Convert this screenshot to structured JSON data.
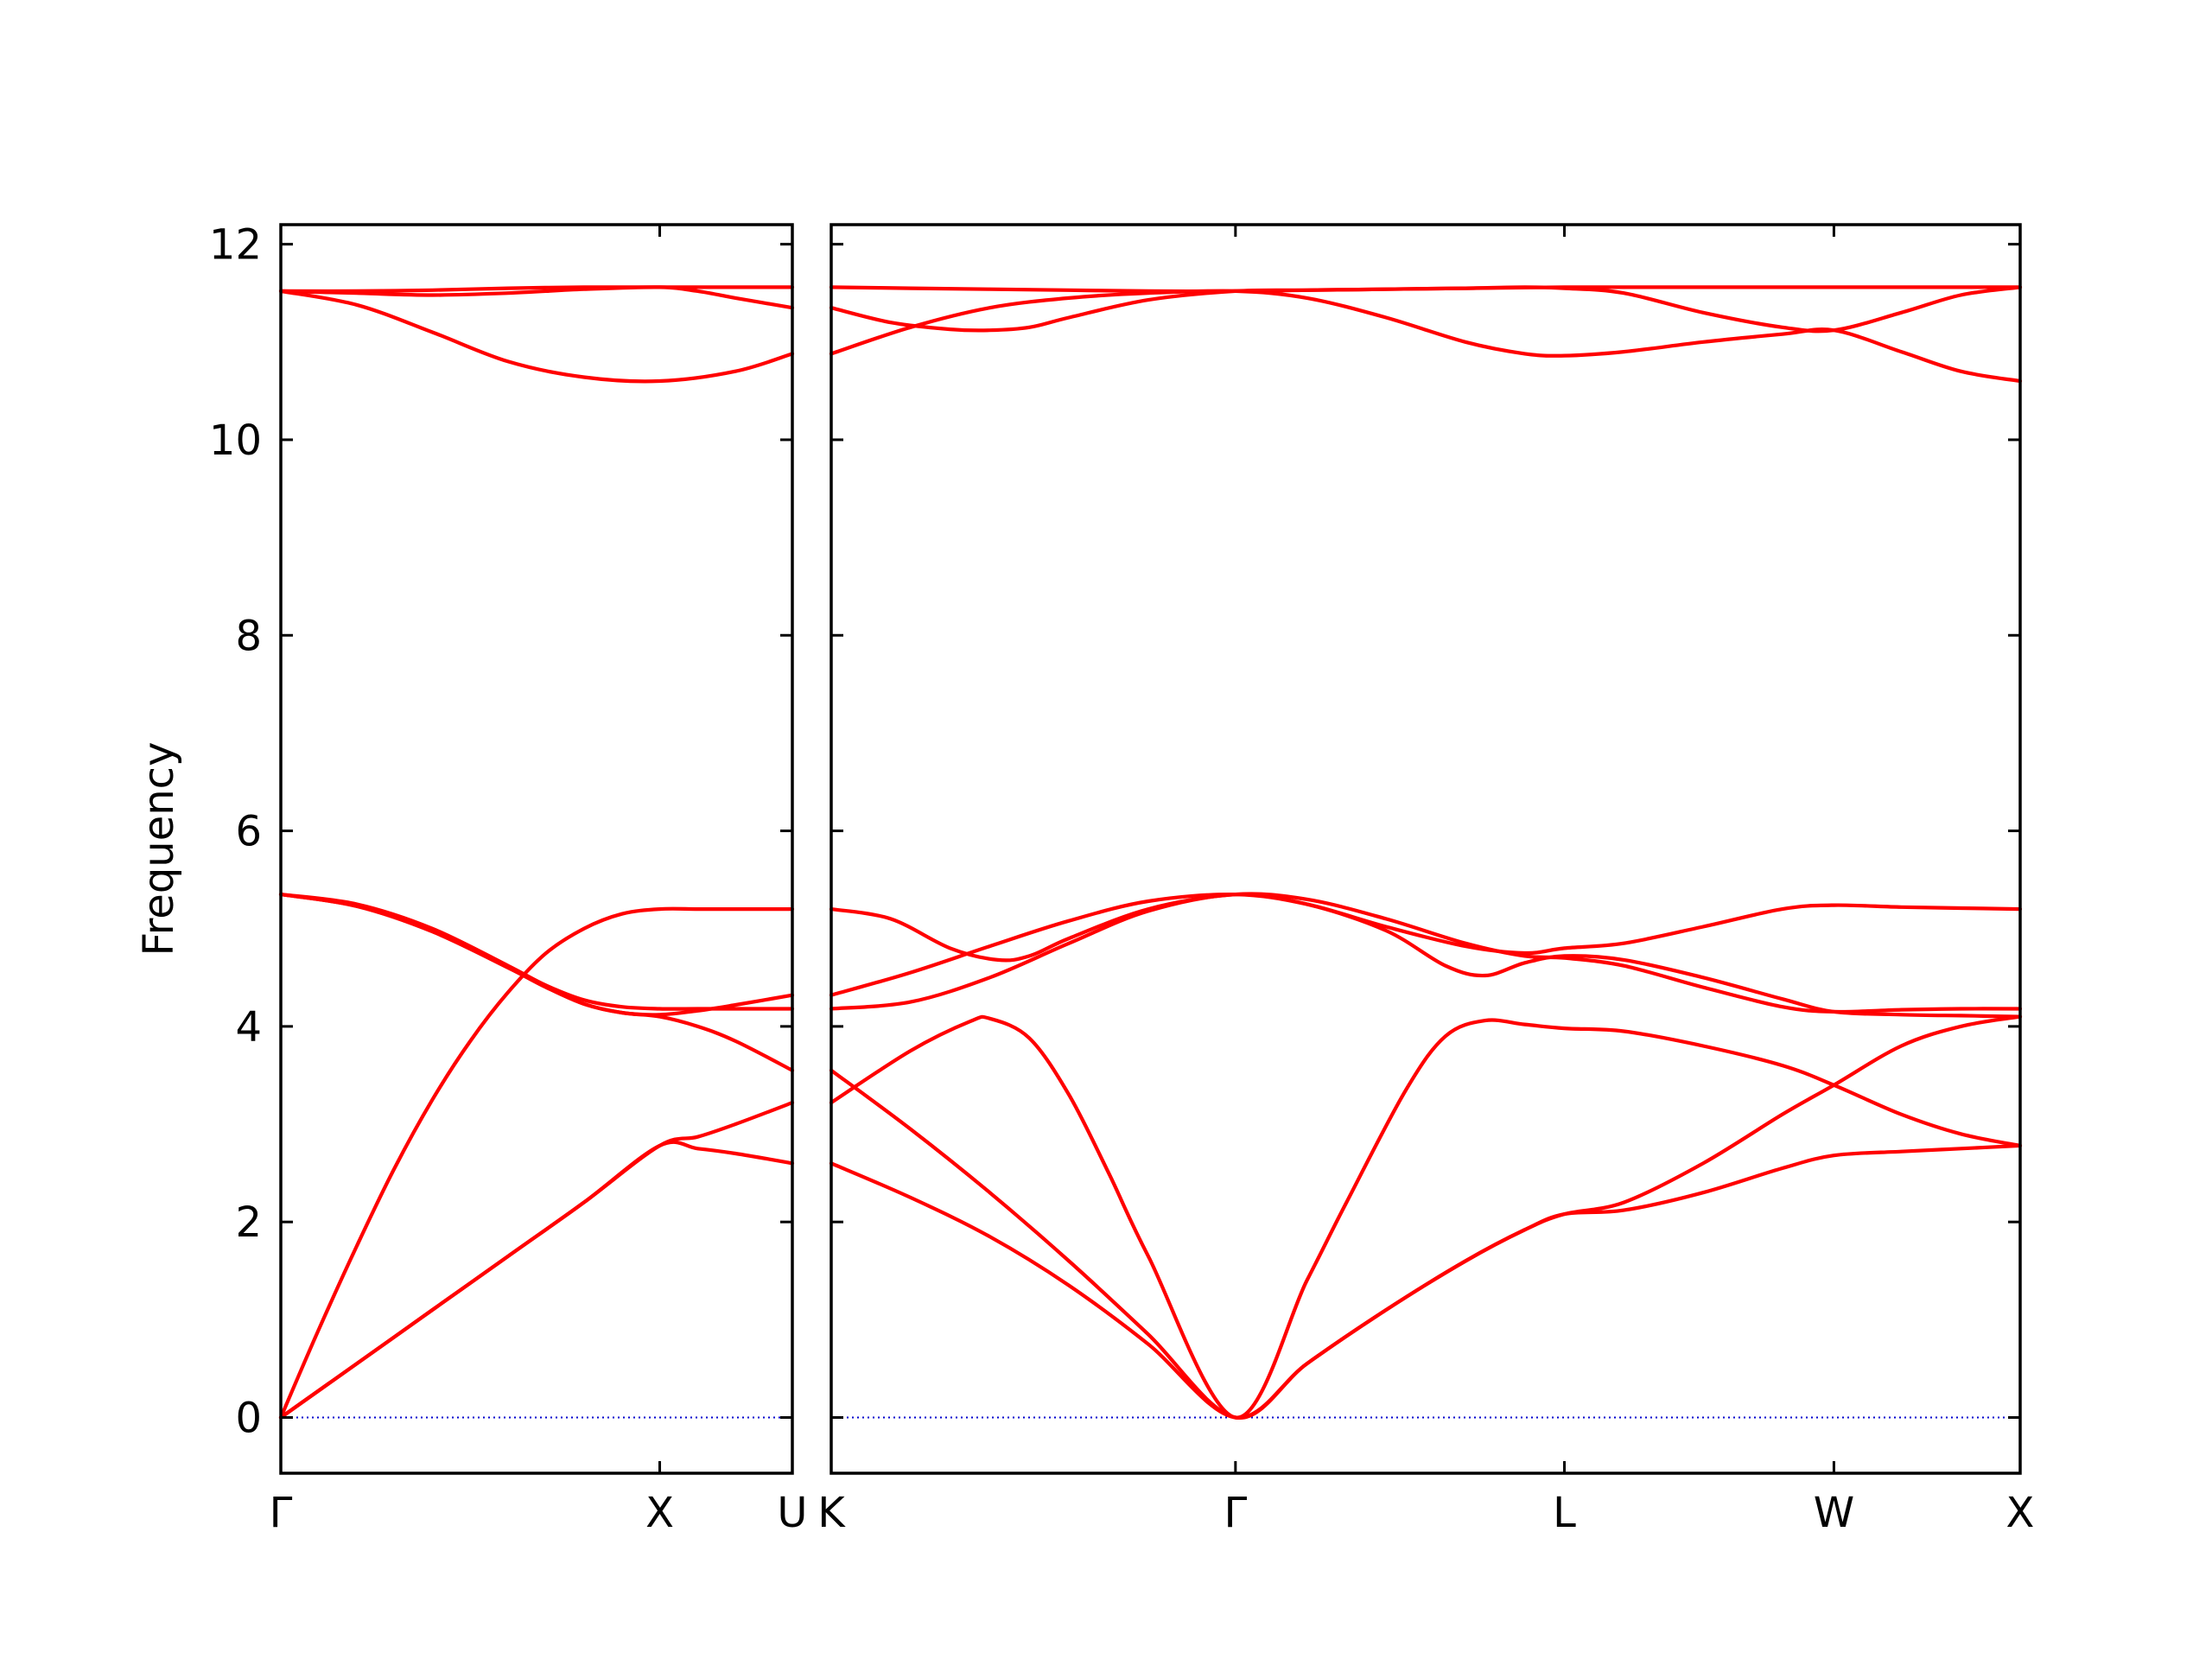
{
  "chart_data": {
    "type": "line",
    "ylabel": "Frequency",
    "ylim": [
      -0.57,
      12.2
    ],
    "yticks": [
      0,
      2,
      4,
      6,
      8,
      10,
      12
    ],
    "grid": false,
    "legend": "none",
    "colors": {
      "bands": "#ff0000",
      "zero_line": "#0000cc",
      "frame": "#000000"
    },
    "panels": [
      {
        "name": "panel-1",
        "xlim": [
          0,
          1.35
        ],
        "ticks": [
          {
            "x": 0.0,
            "label": "Γ"
          },
          {
            "x": 1.0,
            "label": "X"
          },
          {
            "x": 1.35,
            "label": "U"
          }
        ],
        "series": [
          {
            "x": [
              0,
              0.2,
              0.4,
              0.6,
              0.8,
              1.0,
              1.1,
              1.2,
              1.35
            ],
            "y": [
              0,
              0.55,
              1.1,
              1.65,
              2.2,
              2.78,
              2.75,
              2.7,
              2.6
            ]
          },
          {
            "x": [
              0,
              0.2,
              0.4,
              0.6,
              0.8,
              1.0,
              1.1,
              1.2,
              1.35
            ],
            "y": [
              0,
              0.55,
              1.1,
              1.65,
              2.2,
              2.78,
              2.87,
              3.0,
              3.22
            ]
          },
          {
            "x": [
              0,
              0.1,
              0.2,
              0.3,
              0.4,
              0.5,
              0.6,
              0.7,
              0.8,
              0.9,
              1.0,
              1.1,
              1.2,
              1.35
            ],
            "y": [
              0,
              0.9,
              1.75,
              2.55,
              3.25,
              3.85,
              4.35,
              4.75,
              5.0,
              5.15,
              5.2,
              5.2,
              5.2,
              5.2
            ]
          },
          {
            "x": [
              0,
              0.2,
              0.4,
              0.6,
              0.7,
              0.8,
              0.9,
              1.0,
              1.1,
              1.2,
              1.35
            ],
            "y": [
              5.35,
              5.25,
              5.0,
              4.62,
              4.42,
              4.27,
              4.2,
              4.18,
              4.18,
              4.18,
              4.18
            ]
          },
          {
            "x": [
              0,
              0.2,
              0.4,
              0.6,
              0.7,
              0.8,
              0.9,
              1.0,
              1.1,
              1.2,
              1.35
            ],
            "y": [
              5.35,
              5.23,
              4.97,
              4.6,
              4.4,
              4.23,
              4.14,
              4.12,
              4.16,
              4.22,
              4.32
            ]
          },
          {
            "x": [
              0,
              0.2,
              0.4,
              0.6,
              0.7,
              0.8,
              0.9,
              1.0,
              1.1,
              1.2,
              1.35
            ],
            "y": [
              5.35,
              5.23,
              4.97,
              4.6,
              4.4,
              4.23,
              4.14,
              4.1,
              4.0,
              3.85,
              3.55
            ]
          },
          {
            "x": [
              0,
              0.2,
              0.4,
              0.6,
              0.8,
              1.0,
              1.2,
              1.35
            ],
            "y": [
              11.52,
              11.38,
              11.1,
              10.8,
              10.64,
              10.6,
              10.7,
              10.88
            ]
          },
          {
            "x": [
              0,
              0.2,
              0.4,
              0.6,
              0.8,
              1.0,
              1.1,
              1.2,
              1.35
            ],
            "y": [
              11.52,
              11.5,
              11.48,
              11.5,
              11.54,
              11.56,
              11.52,
              11.45,
              11.35
            ]
          },
          {
            "x": [
              0,
              0.2,
              0.4,
              0.6,
              0.8,
              1.0,
              1.2,
              1.35
            ],
            "y": [
              11.52,
              11.52,
              11.53,
              11.55,
              11.56,
              11.56,
              11.56,
              11.56
            ]
          }
        ]
      },
      {
        "name": "panel-2",
        "xlim": [
          0,
          3.0
        ],
        "ticks": [
          {
            "x": 0.0,
            "label": "K"
          },
          {
            "x": 1.02,
            "label": "Γ"
          },
          {
            "x": 1.85,
            "label": "L"
          },
          {
            "x": 2.53,
            "label": "W"
          },
          {
            "x": 3.0,
            "label": "X"
          }
        ],
        "series": [
          {
            "x": [
              0,
              0.2,
              0.4,
              0.6,
              0.8,
              1.02,
              1.2,
              1.4,
              1.6,
              1.75,
              1.85,
              2.0,
              2.2,
              2.4,
              2.53,
              2.7,
              2.85,
              3.0
            ],
            "y": [
              2.6,
              2.25,
              1.85,
              1.35,
              0.75,
              0,
              0.55,
              1.1,
              1.6,
              1.92,
              2.08,
              2.12,
              2.3,
              2.55,
              2.68,
              2.72,
              2.75,
              2.78
            ]
          },
          {
            "x": [
              0,
              0.2,
              0.4,
              0.6,
              0.8,
              1.02,
              1.2,
              1.4,
              1.6,
              1.75,
              1.85,
              2.0,
              2.2,
              2.4,
              2.53,
              2.7,
              2.85,
              3.0
            ],
            "y": [
              3.55,
              2.95,
              2.3,
              1.6,
              0.85,
              0,
              0.55,
              1.1,
              1.6,
              1.92,
              2.08,
              2.2,
              2.6,
              3.1,
              3.4,
              3.8,
              4.0,
              4.1
            ]
          },
          {
            "x": [
              0,
              0.2,
              0.35,
              0.4,
              0.5,
              0.6,
              0.7,
              0.8,
              1.02,
              1.2,
              1.3,
              1.45,
              1.55,
              1.65,
              1.75,
              1.85,
              2.0,
              2.2,
              2.4,
              2.53,
              2.7,
              2.85,
              3.0
            ],
            "y": [
              3.22,
              3.75,
              4.05,
              4.08,
              3.88,
              3.3,
              2.5,
              1.65,
              0,
              1.4,
              2.2,
              3.35,
              3.9,
              4.06,
              4.02,
              3.98,
              3.95,
              3.8,
              3.6,
              3.4,
              3.1,
              2.9,
              2.78
            ]
          },
          {
            "x": [
              0,
              0.2,
              0.4,
              0.6,
              0.8,
              1.02,
              1.2,
              1.4,
              1.55,
              1.65,
              1.75,
              1.85,
              2.0,
              2.2,
              2.4,
              2.53,
              2.7,
              2.85,
              3.0
            ],
            "y": [
              4.18,
              4.25,
              4.5,
              4.85,
              5.18,
              5.35,
              5.25,
              4.98,
              4.62,
              4.52,
              4.65,
              4.72,
              4.68,
              4.5,
              4.28,
              4.15,
              4.12,
              4.11,
              4.1
            ]
          },
          {
            "x": [
              0,
              0.15,
              0.3,
              0.42,
              0.5,
              0.6,
              0.8,
              1.02,
              1.2,
              1.4,
              1.6,
              1.75,
              1.85,
              2.0,
              2.2,
              2.4,
              2.53,
              2.7,
              2.85,
              3.0
            ],
            "y": [
              5.2,
              5.1,
              4.8,
              4.68,
              4.72,
              4.9,
              5.2,
              5.35,
              5.3,
              5.1,
              4.85,
              4.72,
              4.7,
              4.62,
              4.4,
              4.2,
              4.15,
              4.17,
              4.18,
              4.18
            ]
          },
          {
            "x": [
              0,
              0.2,
              0.4,
              0.6,
              0.8,
              1.02,
              1.2,
              1.4,
              1.6,
              1.75,
              1.85,
              2.0,
              2.2,
              2.4,
              2.53,
              2.7,
              2.85,
              3.0
            ],
            "y": [
              4.32,
              4.55,
              4.82,
              5.08,
              5.28,
              5.35,
              5.25,
              5.02,
              4.82,
              4.75,
              4.8,
              4.85,
              5.02,
              5.2,
              5.24,
              5.22,
              5.21,
              5.2
            ]
          },
          {
            "x": [
              0,
              0.2,
              0.4,
              0.6,
              0.8,
              1.02,
              1.2,
              1.4,
              1.6,
              1.75,
              1.85,
              2.0,
              2.2,
              2.4,
              2.53,
              2.7,
              2.85,
              3.0
            ],
            "y": [
              10.88,
              11.15,
              11.35,
              11.45,
              11.5,
              11.52,
              11.45,
              11.25,
              11.0,
              10.88,
              10.86,
              10.9,
              11.0,
              11.08,
              11.12,
              10.9,
              10.7,
              10.6
            ]
          },
          {
            "x": [
              0,
              0.15,
              0.3,
              0.4,
              0.5,
              0.6,
              0.8,
              1.02,
              1.2,
              1.4,
              1.6,
              1.75,
              1.85,
              2.0,
              2.2,
              2.4,
              2.53,
              2.7,
              2.85,
              3.0
            ],
            "y": [
              11.35,
              11.2,
              11.13,
              11.12,
              11.15,
              11.25,
              11.43,
              11.52,
              11.53,
              11.54,
              11.55,
              11.56,
              11.55,
              11.5,
              11.3,
              11.15,
              11.12,
              11.3,
              11.48,
              11.56
            ]
          },
          {
            "x": [
              0,
              0.2,
              0.4,
              0.6,
              0.8,
              1.02,
              1.2,
              1.4,
              1.6,
              1.85,
              2.0,
              2.2,
              2.4,
              2.53,
              2.7,
              2.85,
              3.0
            ],
            "y": [
              11.56,
              11.55,
              11.54,
              11.53,
              11.52,
              11.52,
              11.53,
              11.54,
              11.55,
              11.56,
              11.56,
              11.56,
              11.56,
              11.56,
              11.56,
              11.56,
              11.56
            ]
          }
        ]
      }
    ]
  }
}
